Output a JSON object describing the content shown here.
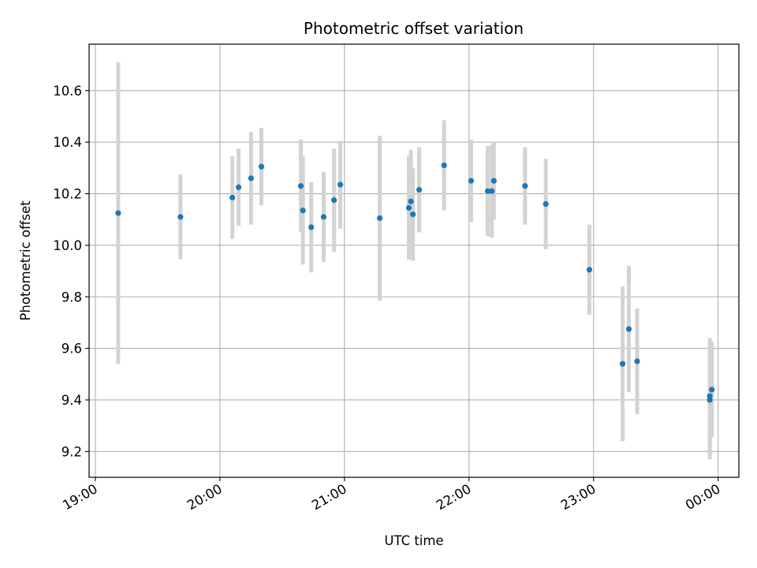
{
  "chart_data": {
    "type": "scatter",
    "title": "Photometric offset variation",
    "xlabel": "UTC time",
    "ylabel": "Photometric offset",
    "x_axis_kind": "time",
    "xlim": [
      "18:57",
      "00:10"
    ],
    "ylim": [
      9.1,
      10.78
    ],
    "grid": true,
    "x_ticks": [
      "19:00",
      "20:00",
      "21:00",
      "22:00",
      "23:00",
      "00:00"
    ],
    "y_ticks": [
      "9.2",
      "9.4",
      "9.6",
      "9.8",
      "10.0",
      "10.2",
      "10.4",
      "10.6"
    ],
    "point_color": "#1f77b4",
    "errorbar_color": "#d3d3d3",
    "points": [
      {
        "x": "19:11",
        "y": 10.125,
        "err": 0.585
      },
      {
        "x": "19:41",
        "y": 10.11,
        "err": 0.165
      },
      {
        "x": "20:06",
        "y": 10.185,
        "err": 0.16
      },
      {
        "x": "20:09",
        "y": 10.225,
        "err": 0.15
      },
      {
        "x": "20:15",
        "y": 10.26,
        "err": 0.18
      },
      {
        "x": "20:20",
        "y": 10.305,
        "err": 0.15
      },
      {
        "x": "20:39",
        "y": 10.23,
        "err": 0.18
      },
      {
        "x": "20:40",
        "y": 10.135,
        "err": 0.21
      },
      {
        "x": "20:44",
        "y": 10.07,
        "err": 0.175
      },
      {
        "x": "20:50",
        "y": 10.11,
        "err": 0.175
      },
      {
        "x": "20:55",
        "y": 10.175,
        "err": 0.2
      },
      {
        "x": "20:58",
        "y": 10.235,
        "err": 0.17
      },
      {
        "x": "21:17",
        "y": 10.105,
        "err": 0.32
      },
      {
        "x": "21:31",
        "y": 10.145,
        "err": 0.2
      },
      {
        "x": "21:32",
        "y": 10.17,
        "err": 0.2
      },
      {
        "x": "21:33",
        "y": 10.12,
        "err": 0.18
      },
      {
        "x": "21:36",
        "y": 10.215,
        "err": 0.165
      },
      {
        "x": "21:48",
        "y": 10.31,
        "err": 0.175
      },
      {
        "x": "22:01",
        "y": 10.25,
        "err": 0.16
      },
      {
        "x": "22:09",
        "y": 10.21,
        "err": 0.175
      },
      {
        "x": "22:11",
        "y": 10.21,
        "err": 0.18
      },
      {
        "x": "22:12",
        "y": 10.25,
        "err": 0.15
      },
      {
        "x": "22:27",
        "y": 10.23,
        "err": 0.15
      },
      {
        "x": "22:37",
        "y": 10.16,
        "err": 0.175
      },
      {
        "x": "22:58",
        "y": 9.905,
        "err": 0.175
      },
      {
        "x": "23:14",
        "y": 9.54,
        "err": 0.3
      },
      {
        "x": "23:17",
        "y": 9.675,
        "err": 0.245
      },
      {
        "x": "23:21",
        "y": 9.55,
        "err": 0.205
      },
      {
        "x": "23:56",
        "y": 9.415,
        "err": 0.225
      },
      {
        "x": "23:56",
        "y": 9.4,
        "err": 0.23
      },
      {
        "x": "23:57",
        "y": 9.44,
        "err": 0.185
      }
    ]
  }
}
